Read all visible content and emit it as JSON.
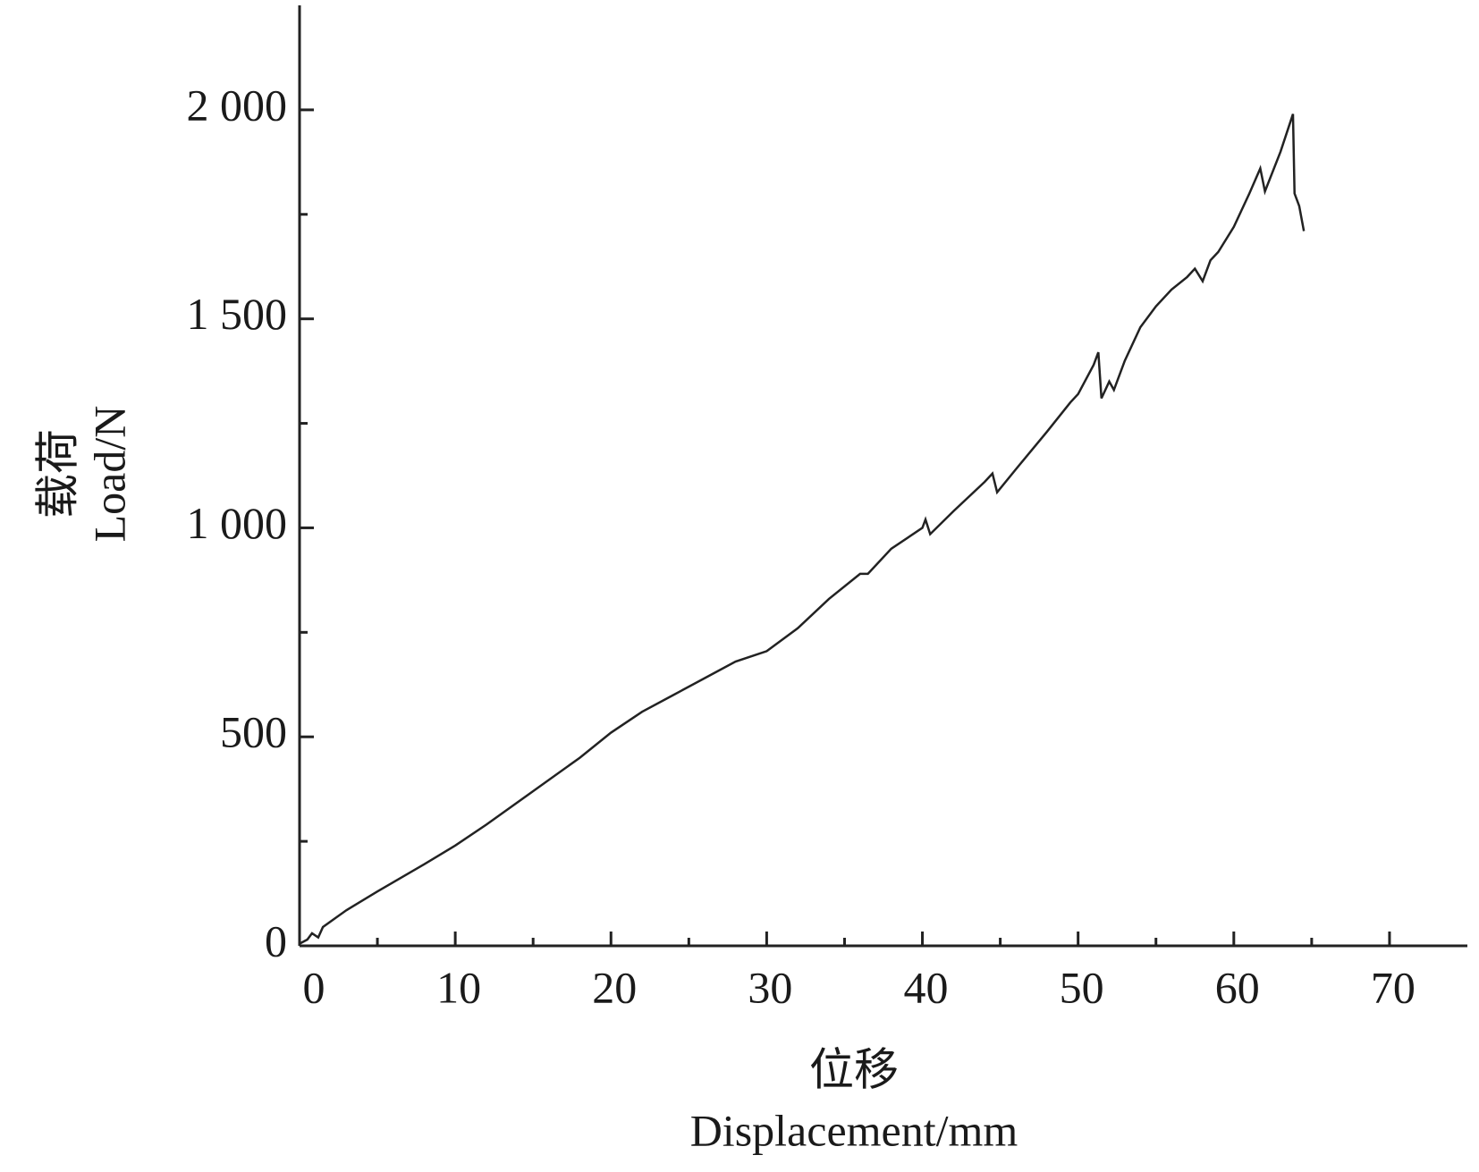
{
  "chart_data": {
    "type": "line",
    "y_label": [
      "载荷",
      "Load/N"
    ],
    "x_label": [
      "位移",
      "Displacement/mm"
    ],
    "xlim": [
      0,
      75
    ],
    "ylim": [
      0,
      2250
    ],
    "xticks": [
      0,
      10,
      20,
      30,
      40,
      50,
      60,
      70
    ],
    "xminorticks": [
      5,
      15,
      25,
      35,
      45,
      55,
      65
    ],
    "yticks": [
      0,
      500,
      {
        "value": 1000,
        "label": "1 000"
      },
      {
        "value": 1500,
        "label": "1 500"
      },
      {
        "value": 2000,
        "label": "2 000"
      }
    ],
    "yminorticks": [
      250,
      750,
      1250,
      1750
    ],
    "series": [
      {
        "color": "#222222",
        "x": [
          0,
          0.5,
          0.8,
          1.2,
          1.5,
          3,
          5,
          8,
          10,
          12,
          15,
          18,
          20,
          22,
          24,
          24.5,
          26,
          28,
          30,
          32,
          34,
          36,
          36.5,
          38,
          40,
          40.2,
          40.5,
          42,
          44,
          44.5,
          44.8,
          46,
          48,
          49.5,
          50,
          51,
          51.3,
          51.5,
          52,
          52.3,
          53,
          54,
          55,
          56,
          57,
          57.5,
          58,
          58.5,
          59,
          60,
          61,
          61.7,
          62,
          63,
          63.8,
          63.9,
          64.2,
          64.5
        ],
        "values": [
          5,
          15,
          30,
          20,
          45,
          85,
          130,
          195,
          240,
          290,
          370,
          450,
          510,
          560,
          600,
          610,
          640,
          680,
          705,
          760,
          830,
          890,
          890,
          950,
          1000,
          1020,
          985,
          1040,
          1110,
          1130,
          1085,
          1140,
          1230,
          1300,
          1320,
          1390,
          1420,
          1310,
          1350,
          1330,
          1400,
          1480,
          1530,
          1570,
          1600,
          1620,
          1590,
          1640,
          1660,
          1720,
          1800,
          1860,
          1805,
          1900,
          1990,
          1800,
          1770,
          1710
        ]
      }
    ]
  }
}
